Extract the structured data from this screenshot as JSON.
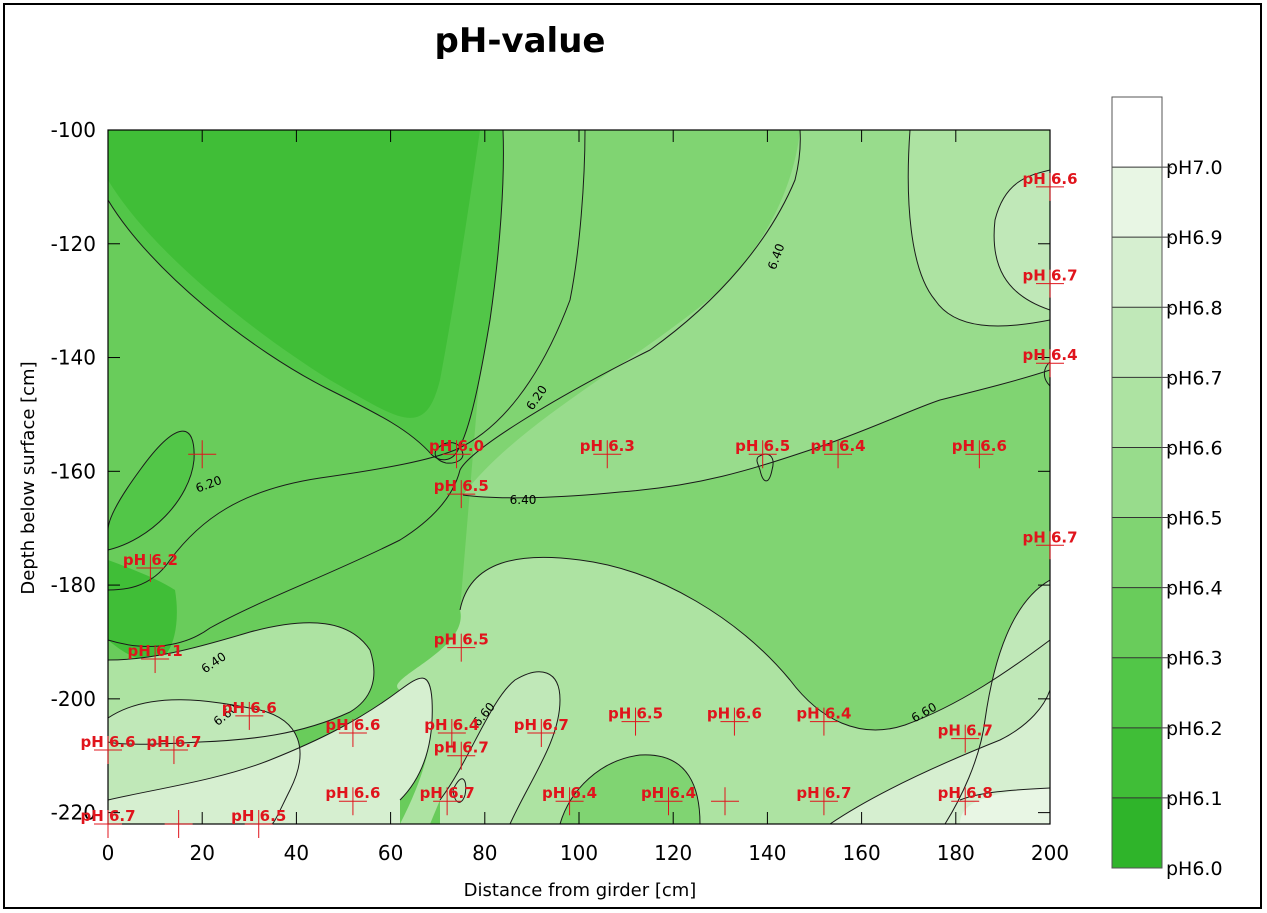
{
  "chart_data": {
    "type": "contour",
    "title": "pH-value",
    "xlabel": "Distance from girder [cm]",
    "ylabel": "Depth below surface [cm]",
    "xlim": [
      0,
      200
    ],
    "ylim": [
      -222,
      -100
    ],
    "x_ticks": [
      "0",
      "20",
      "40",
      "60",
      "80",
      "100",
      "120",
      "140",
      "160",
      "180",
      "200"
    ],
    "y_ticks": [
      "-100",
      "-120",
      "-140",
      "-160",
      "-180",
      "-200",
      "-220"
    ],
    "legend": [
      "pH7.0",
      "pH6.9",
      "pH6.8",
      "pH6.7",
      "pH6.6",
      "pH6.5",
      "pH6.4",
      "pH6.3",
      "pH6.2",
      "pH6.1",
      "pH6.0"
    ],
    "legend_colors": [
      "#ffffff",
      "#e8f6e4",
      "#d6efd0",
      "#c0e8b8",
      "#ade3a2",
      "#98dc8c",
      "#80d472",
      "#69cc5b",
      "#52c648",
      "#40be37",
      "#2fb42a"
    ],
    "contour_labels": [
      "6.20",
      "6.40",
      "6.20",
      "6.40",
      "6.40",
      "6.60",
      "6.60",
      "6.60"
    ],
    "measurements": [
      {
        "label": "pH 6.6",
        "x": 200,
        "y": -110
      },
      {
        "label": "pH 6.7",
        "x": 200,
        "y": -127
      },
      {
        "label": "pH 6.4",
        "x": 200,
        "y": -141
      },
      {
        "label": "pH 6.0",
        "x": 74,
        "y": -157
      },
      {
        "label": "pH 6.3",
        "x": 106,
        "y": -157
      },
      {
        "label": "pH 6.5",
        "x": 139,
        "y": -157
      },
      {
        "label": "pH 6.4",
        "x": 155,
        "y": -157
      },
      {
        "label": "pH 6.6",
        "x": 185,
        "y": -157
      },
      {
        "label": "pH 6.5",
        "x": 75,
        "y": -164
      },
      {
        "label": "pH 6.7",
        "x": 200,
        "y": -173
      },
      {
        "label": "pH 6.2",
        "x": 9,
        "y": -177
      },
      {
        "label": "pH 6.5",
        "x": 75,
        "y": -191
      },
      {
        "label": "pH 6.1",
        "x": 10,
        "y": -193
      },
      {
        "label": "pH 6.6",
        "x": 30,
        "y": -203
      },
      {
        "label": "pH 6.5",
        "x": 112,
        "y": -204
      },
      {
        "label": "pH 6.6",
        "x": 133,
        "y": -204
      },
      {
        "label": "pH 6.4",
        "x": 152,
        "y": -204
      },
      {
        "label": "pH 6.6",
        "x": 52,
        "y": -206
      },
      {
        "label": "pH 6.4",
        "x": 73,
        "y": -206
      },
      {
        "label": "pH 6.7",
        "x": 92,
        "y": -206
      },
      {
        "label": "pH 6.7",
        "x": 182,
        "y": -207
      },
      {
        "label": "pH 6.6",
        "x": 0,
        "y": -209
      },
      {
        "label": "pH 6.7",
        "x": 14,
        "y": -209
      },
      {
        "label": "pH 6.7",
        "x": 75,
        "y": -210
      },
      {
        "label": "pH 6.6",
        "x": 52,
        "y": -218
      },
      {
        "label": "pH 6.7",
        "x": 72,
        "y": -218
      },
      {
        "label": "pH 6.4",
        "x": 98,
        "y": -218
      },
      {
        "label": "pH 6.4",
        "x": 119,
        "y": -218
      },
      {
        "label": "pH 6.7",
        "x": 152,
        "y": -218
      },
      {
        "label": "pH 6.8",
        "x": 182,
        "y": -218
      },
      {
        "label": "pH 6.7",
        "x": 0,
        "y": -222
      },
      {
        "label": "pH 6.5",
        "x": 32,
        "y": -222
      }
    ],
    "extra_crosses": [
      {
        "x": 20,
        "y": -157
      },
      {
        "x": 15,
        "y": -222
      },
      {
        "x": 131,
        "y": -218
      }
    ]
  }
}
